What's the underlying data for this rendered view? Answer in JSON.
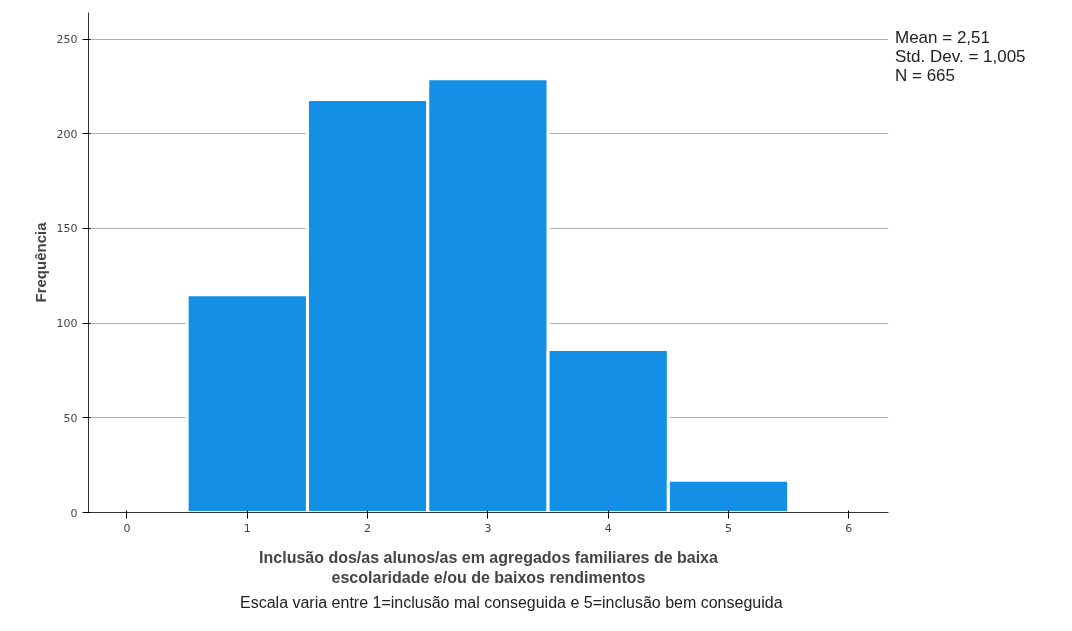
{
  "chart_data": {
    "type": "histogram",
    "xlabel": "Inclusão dos/as alunos/as em agregados familiares de baixa\nescolaridade e/ou de baixos rendimentos",
    "ylabel": "Frequência",
    "bins": [
      0.5,
      1.5,
      2.5,
      3.5,
      4.5,
      5.5
    ],
    "values": [
      115,
      218,
      229,
      86,
      17
    ],
    "color": "#1390e6",
    "xlim": [
      -0.32,
      6.33
    ],
    "xticks": [
      0,
      1,
      2,
      3,
      4,
      5,
      6
    ],
    "ylim": [
      0,
      264
    ],
    "yticks": [
      0,
      50,
      100,
      150,
      200,
      250
    ],
    "grid": "y",
    "annotations": [
      "Mean = 2,51",
      "Std. Dev. = 1,005",
      "N = 665",
      "Escala varia entre 1=inclusão mal conseguida e 5=inclusão bem conseguida"
    ]
  }
}
